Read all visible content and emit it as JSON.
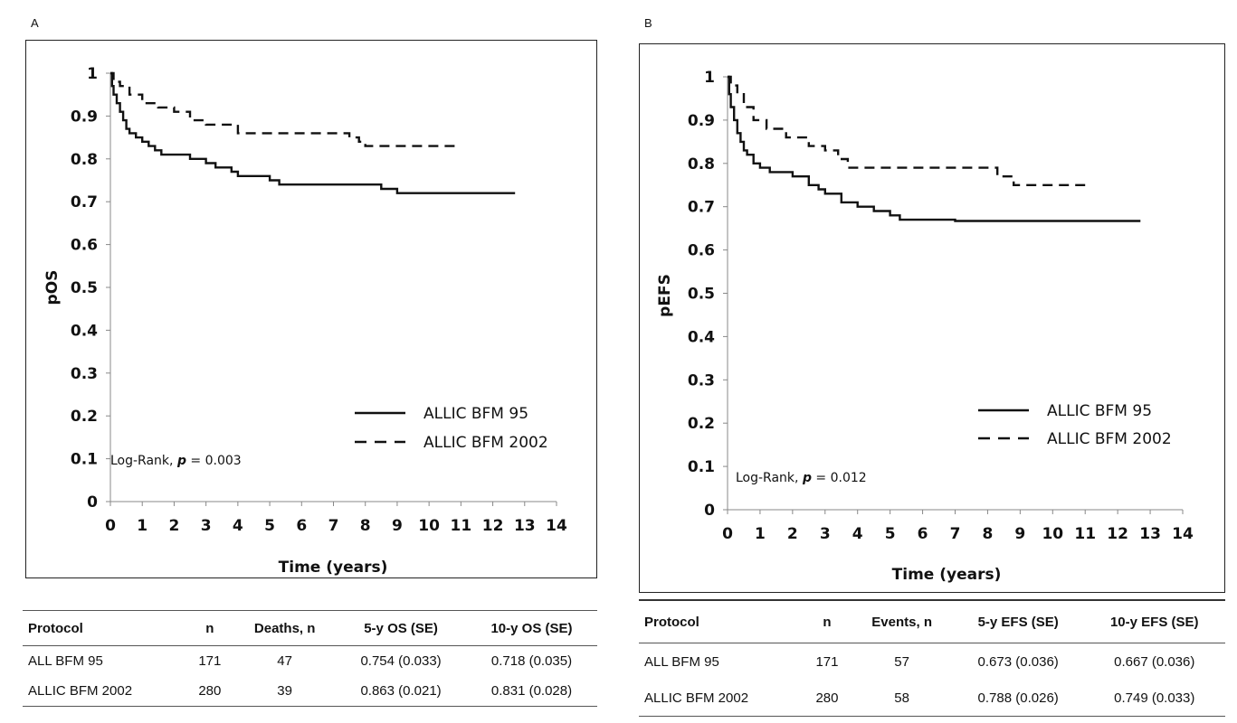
{
  "panels": [
    {
      "letter": "A",
      "logrank_prefix": "Log-Rank, ",
      "logrank_p": "p",
      "logrank_suffix": " = 0.003",
      "table": {
        "headers": [
          "Protocol",
          "n",
          "Deaths, n",
          "5-y OS (SE)",
          "10-y OS (SE)"
        ],
        "rows": [
          [
            "ALL BFM 95",
            "171",
            "47",
            "0.754 (0.033)",
            "0.718 (0.035)"
          ],
          [
            "ALLIC BFM 2002",
            "280",
            "39",
            "0.863 (0.021)",
            "0.831 (0.028)"
          ]
        ]
      }
    },
    {
      "letter": "B",
      "logrank_prefix": "Log-Rank, ",
      "logrank_p": "p",
      "logrank_suffix": " = 0.012",
      "table": {
        "headers": [
          "Protocol",
          "n",
          "Events, n",
          "5-y EFS (SE)",
          "10-y EFS (SE)"
        ],
        "rows": [
          [
            "ALL BFM 95",
            "171",
            "57",
            "0.673 (0.036)",
            "0.667 (0.036)"
          ],
          [
            "ALLIC BFM 2002",
            "280",
            "58",
            "0.788 (0.026)",
            "0.749 (0.033)"
          ]
        ]
      }
    }
  ],
  "chart_data": [
    {
      "type": "line",
      "step": true,
      "xlabel": "Time (years)",
      "ylabel": "pOS",
      "xlim": [
        0,
        14
      ],
      "ylim": [
        0,
        1
      ],
      "xticks": [
        0,
        1,
        2,
        3,
        4,
        5,
        6,
        7,
        8,
        9,
        10,
        11,
        12,
        13,
        14
      ],
      "yticks": [
        0,
        0.1,
        0.2,
        0.3,
        0.4,
        0.5,
        0.6,
        0.7,
        0.8,
        0.9,
        1
      ],
      "ytick_labels": [
        "0",
        "0.1",
        "0.2",
        "0.3",
        "0.4",
        "0.5",
        "0.6",
        "0.7",
        "0.8",
        "0.9",
        "1"
      ],
      "grid": false,
      "legend_position": "lower-right",
      "series": [
        {
          "name": "ALLIC BFM 95",
          "style": "solid",
          "x": [
            0,
            0.05,
            0.1,
            0.2,
            0.3,
            0.4,
            0.5,
            0.6,
            0.8,
            1.0,
            1.2,
            1.4,
            1.6,
            2.0,
            2.5,
            3.0,
            3.3,
            3.8,
            4.0,
            4.5,
            5.0,
            5.3,
            6.0,
            7.0,
            8.0,
            8.5,
            9.0,
            10.0,
            11.0,
            12.0,
            12.7
          ],
          "y": [
            1.0,
            0.97,
            0.95,
            0.93,
            0.91,
            0.89,
            0.87,
            0.86,
            0.85,
            0.84,
            0.83,
            0.82,
            0.81,
            0.81,
            0.8,
            0.79,
            0.78,
            0.77,
            0.76,
            0.76,
            0.75,
            0.74,
            0.74,
            0.74,
            0.74,
            0.73,
            0.72,
            0.72,
            0.72,
            0.72,
            0.72
          ]
        },
        {
          "name": "ALLIC BFM 2002",
          "style": "dashed",
          "x": [
            0,
            0.1,
            0.3,
            0.6,
            1.0,
            1.5,
            2.0,
            2.5,
            3.0,
            4.0,
            5.0,
            6.0,
            7.0,
            7.5,
            7.8,
            8.0,
            9.0,
            10.0,
            11.0
          ],
          "y": [
            1.0,
            0.98,
            0.97,
            0.95,
            0.93,
            0.92,
            0.91,
            0.89,
            0.88,
            0.86,
            0.86,
            0.86,
            0.86,
            0.85,
            0.84,
            0.83,
            0.83,
            0.83,
            0.83
          ]
        }
      ]
    },
    {
      "type": "line",
      "step": true,
      "xlabel": "Time (years)",
      "ylabel": "pEFS",
      "xlim": [
        0,
        14
      ],
      "ylim": [
        0,
        1
      ],
      "xticks": [
        0,
        1,
        2,
        3,
        4,
        5,
        6,
        7,
        8,
        9,
        10,
        11,
        12,
        13,
        14
      ],
      "yticks": [
        0,
        0.1,
        0.2,
        0.3,
        0.4,
        0.5,
        0.6,
        0.7,
        0.8,
        0.9,
        1
      ],
      "ytick_labels": [
        "0",
        "0.1",
        "0.2",
        "0.3",
        "0.4",
        "0.5",
        "0.6",
        "0.7",
        "0.8",
        "0.9",
        "1"
      ],
      "grid": false,
      "legend_position": "lower-right",
      "series": [
        {
          "name": "ALLIC BFM 95",
          "style": "solid",
          "x": [
            0,
            0.05,
            0.1,
            0.2,
            0.3,
            0.4,
            0.5,
            0.6,
            0.8,
            1.0,
            1.3,
            1.6,
            2.0,
            2.5,
            2.8,
            3.0,
            3.5,
            4.0,
            4.5,
            5.0,
            5.3,
            6.0,
            7.0,
            8.0,
            9.0,
            10.0,
            11.0,
            12.0,
            12.7
          ],
          "y": [
            1.0,
            0.96,
            0.93,
            0.9,
            0.87,
            0.85,
            0.83,
            0.82,
            0.8,
            0.79,
            0.78,
            0.78,
            0.77,
            0.75,
            0.74,
            0.73,
            0.71,
            0.7,
            0.69,
            0.68,
            0.67,
            0.67,
            0.667,
            0.667,
            0.667,
            0.667,
            0.667,
            0.667,
            0.667
          ]
        },
        {
          "name": "ALLIC BFM 2002",
          "style": "dashed",
          "x": [
            0,
            0.1,
            0.3,
            0.5,
            0.8,
            1.2,
            1.8,
            2.5,
            3.0,
            3.4,
            3.7,
            4.0,
            5.0,
            6.0,
            7.0,
            8.0,
            8.3,
            8.8,
            9.0,
            10.0,
            11.0
          ],
          "y": [
            1.0,
            0.98,
            0.96,
            0.93,
            0.9,
            0.88,
            0.86,
            0.84,
            0.83,
            0.81,
            0.79,
            0.79,
            0.79,
            0.79,
            0.79,
            0.79,
            0.77,
            0.75,
            0.75,
            0.75,
            0.75
          ]
        }
      ]
    }
  ]
}
